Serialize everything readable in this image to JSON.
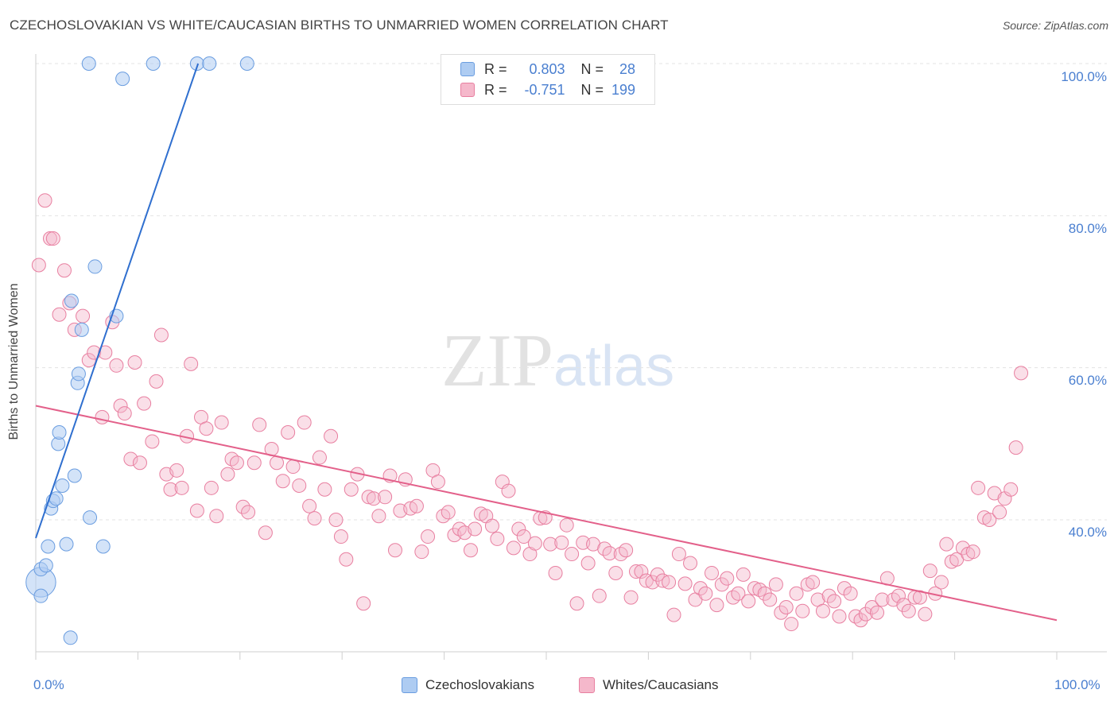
{
  "title": "CZECHOSLOVAKIAN VS WHITE/CAUCASIAN BIRTHS TO UNMARRIED WOMEN CORRELATION CHART",
  "source": "Source: ZipAtlas.com",
  "watermark": {
    "zip": "ZIP",
    "atlas": "atlas"
  },
  "stats": {
    "r_label": "R =",
    "n_label": "N =",
    "czech": {
      "r": "0.803",
      "n": "28"
    },
    "white": {
      "r": "-0.751",
      "n": "199"
    }
  },
  "legend": {
    "czech": "Czechoslovakians",
    "white": "Whites/Caucasians"
  },
  "colors": {
    "czech_fill": "#aeccf2",
    "czech_stroke": "#6a9de0",
    "czech_line": "#2f6fcf",
    "white_fill": "#f5b8cb",
    "white_stroke": "#e87fa0",
    "white_line": "#e3608a",
    "tick_text": "#4a7fd0"
  },
  "chart_data": {
    "type": "scatter",
    "title": "CZECHOSLOVAKIAN VS WHITE/CAUCASIAN BIRTHS TO UNMARRIED WOMEN CORRELATION CHART",
    "xlabel": "",
    "ylabel": "Births to Unmarried Women",
    "xlim": [
      0,
      100
    ],
    "ylim": [
      20,
      104
    ],
    "x_tick_labels": [
      "0.0%",
      "100.0%"
    ],
    "y_ticks": [
      40,
      60,
      80,
      100
    ],
    "y_tick_labels": [
      "40.0%",
      "60.0%",
      "80.0%",
      "100.0%"
    ],
    "series": [
      {
        "name": "Czechoslovakians",
        "r": 0.803,
        "n": 28,
        "trend": {
          "x": [
            0,
            15.9
          ],
          "y": [
            37.6,
            100
          ]
        },
        "points": [
          [
            0.5,
            31.8,
            2.2
          ],
          [
            0.5,
            30,
            1
          ],
          [
            0.5,
            33.5,
            1
          ],
          [
            1,
            34,
            1
          ],
          [
            1.2,
            36.5,
            1
          ],
          [
            1.5,
            41.5,
            1
          ],
          [
            1.7,
            42.5,
            1
          ],
          [
            2,
            42.8,
            1
          ],
          [
            2.2,
            50,
            1
          ],
          [
            2.3,
            51.5,
            1
          ],
          [
            2.6,
            44.5,
            1
          ],
          [
            3,
            36.8,
            1
          ],
          [
            3.5,
            68.8,
            1
          ],
          [
            3.4,
            24.5,
            1
          ],
          [
            3.8,
            45.8,
            1
          ],
          [
            4.1,
            58,
            1
          ],
          [
            4.2,
            59.2,
            1
          ],
          [
            4.5,
            65,
            1
          ],
          [
            5.2,
            100,
            1
          ],
          [
            5.3,
            40.3,
            1
          ],
          [
            5.8,
            73.3,
            1
          ],
          [
            6.6,
            36.5,
            1
          ],
          [
            7.9,
            66.8,
            1
          ],
          [
            8.5,
            98,
            1
          ],
          [
            11.5,
            100,
            1
          ],
          [
            15.8,
            100,
            1
          ],
          [
            17,
            100,
            1
          ],
          [
            20.7,
            100,
            1
          ]
        ]
      },
      {
        "name": "Whites/Caucasians",
        "r": -0.751,
        "n": 199,
        "trend": {
          "x": [
            0,
            100
          ],
          "y": [
            55,
            26.8
          ]
        },
        "points": [
          [
            0.3,
            73.5
          ],
          [
            0.9,
            82
          ],
          [
            1.4,
            77
          ],
          [
            1.7,
            77
          ],
          [
            2.3,
            67
          ],
          [
            2.8,
            72.8
          ],
          [
            3.3,
            68.5
          ],
          [
            3.8,
            65
          ],
          [
            4.6,
            66.8
          ],
          [
            5.2,
            61
          ],
          [
            5.7,
            62
          ],
          [
            6.5,
            53.5
          ],
          [
            6.8,
            62
          ],
          [
            7.5,
            66
          ],
          [
            7.9,
            60.3
          ],
          [
            8.3,
            55
          ],
          [
            8.7,
            54
          ],
          [
            9.3,
            48
          ],
          [
            9.7,
            60.7
          ],
          [
            10.2,
            47.5
          ],
          [
            10.6,
            55.3
          ],
          [
            11.4,
            50.3
          ],
          [
            11.8,
            58.2
          ],
          [
            12.3,
            64.3
          ],
          [
            12.8,
            46
          ],
          [
            13.2,
            44
          ],
          [
            13.8,
            46.5
          ],
          [
            14.3,
            44.2
          ],
          [
            14.8,
            51
          ],
          [
            15.2,
            60.5
          ],
          [
            15.8,
            41.2
          ],
          [
            16.2,
            53.5
          ],
          [
            16.7,
            52
          ],
          [
            17.2,
            44.2
          ],
          [
            17.7,
            40.5
          ],
          [
            18.2,
            52.8
          ],
          [
            18.8,
            46
          ],
          [
            19.2,
            48
          ],
          [
            19.7,
            47.5
          ],
          [
            20.3,
            41.7
          ],
          [
            20.8,
            41
          ],
          [
            21.4,
            47.5
          ],
          [
            21.9,
            52.5
          ],
          [
            22.5,
            38.3
          ],
          [
            23.1,
            49.3
          ],
          [
            23.6,
            47.5
          ],
          [
            24.2,
            45.1
          ],
          [
            24.7,
            51.5
          ],
          [
            25.2,
            47
          ],
          [
            25.8,
            44.5
          ],
          [
            26.3,
            52.8
          ],
          [
            26.8,
            41.8
          ],
          [
            27.3,
            40.2
          ],
          [
            27.8,
            48.2
          ],
          [
            28.3,
            44
          ],
          [
            28.9,
            51
          ],
          [
            29.4,
            40
          ],
          [
            29.9,
            37.8
          ],
          [
            30.4,
            34.8
          ],
          [
            30.9,
            44
          ],
          [
            31.5,
            46
          ],
          [
            32.1,
            29
          ],
          [
            32.6,
            43
          ],
          [
            33.1,
            42.8
          ],
          [
            33.6,
            40.5
          ],
          [
            34.2,
            43
          ],
          [
            34.7,
            45.8
          ],
          [
            35.2,
            36
          ],
          [
            35.7,
            41.2
          ],
          [
            36.2,
            45.3
          ],
          [
            36.7,
            41.5
          ],
          [
            37.3,
            41.8
          ],
          [
            37.8,
            35.8
          ],
          [
            38.4,
            37.8
          ],
          [
            38.9,
            46.5
          ],
          [
            39.4,
            45
          ],
          [
            39.9,
            40.5
          ],
          [
            40.4,
            41
          ],
          [
            41,
            38
          ],
          [
            41.5,
            38.8
          ],
          [
            42,
            38.3
          ],
          [
            42.6,
            36
          ],
          [
            43,
            38.8
          ],
          [
            43.6,
            40.8
          ],
          [
            44.1,
            40.5
          ],
          [
            44.7,
            39.2
          ],
          [
            45.2,
            37.5
          ],
          [
            45.7,
            45
          ],
          [
            46.3,
            43.8
          ],
          [
            46.8,
            36.3
          ],
          [
            47.3,
            38.8
          ],
          [
            47.8,
            37.8
          ],
          [
            48.4,
            35.5
          ],
          [
            48.9,
            36.9
          ],
          [
            49.4,
            40.2
          ],
          [
            49.9,
            40.3
          ],
          [
            50.4,
            36.8
          ],
          [
            50.9,
            33
          ],
          [
            51.5,
            37
          ],
          [
            52,
            39.3
          ],
          [
            52.5,
            35.5
          ],
          [
            53,
            29
          ],
          [
            53.6,
            37
          ],
          [
            54.1,
            34.3
          ],
          [
            54.6,
            36.8
          ],
          [
            55.2,
            30
          ],
          [
            55.7,
            36.2
          ],
          [
            56.2,
            35.6
          ],
          [
            56.8,
            33
          ],
          [
            57.3,
            35.5
          ],
          [
            57.8,
            36
          ],
          [
            58.3,
            29.8
          ],
          [
            58.8,
            33.2
          ],
          [
            59.3,
            33.2
          ],
          [
            59.8,
            32
          ],
          [
            60.4,
            31.8
          ],
          [
            60.9,
            32.8
          ],
          [
            61.4,
            32
          ],
          [
            62,
            31.8
          ],
          [
            62.5,
            27.5
          ],
          [
            63,
            35.5
          ],
          [
            63.6,
            31.6
          ],
          [
            64.1,
            34.3
          ],
          [
            64.6,
            29.5
          ],
          [
            65.1,
            31
          ],
          [
            65.6,
            30.3
          ],
          [
            66.2,
            33
          ],
          [
            66.7,
            28.8
          ],
          [
            67.2,
            31.5
          ],
          [
            67.7,
            32.3
          ],
          [
            68.3,
            29.8
          ],
          [
            68.8,
            30.3
          ],
          [
            69.3,
            32.8
          ],
          [
            69.8,
            29.3
          ],
          [
            70.4,
            31
          ],
          [
            70.9,
            30.8
          ],
          [
            71.4,
            30.3
          ],
          [
            71.9,
            29.5
          ],
          [
            72.5,
            31.5
          ],
          [
            73,
            27.8
          ],
          [
            73.5,
            28.5
          ],
          [
            74,
            26.3
          ],
          [
            74.5,
            30.3
          ],
          [
            75.1,
            28
          ],
          [
            75.6,
            31.5
          ],
          [
            76.1,
            31.8
          ],
          [
            76.6,
            29.5
          ],
          [
            77.1,
            28
          ],
          [
            77.7,
            30
          ],
          [
            78.2,
            29.3
          ],
          [
            78.7,
            27.3
          ],
          [
            79.2,
            31
          ],
          [
            79.8,
            30.3
          ],
          [
            80.3,
            27.3
          ],
          [
            80.8,
            26.8
          ],
          [
            81.3,
            27.6
          ],
          [
            81.9,
            28.5
          ],
          [
            82.4,
            27.8
          ],
          [
            82.9,
            29.5
          ],
          [
            83.4,
            32.3
          ],
          [
            84,
            29.5
          ],
          [
            84.5,
            30
          ],
          [
            85,
            28.8
          ],
          [
            85.5,
            28
          ],
          [
            86.1,
            29.8
          ],
          [
            86.6,
            29.8
          ],
          [
            87.1,
            27.6
          ],
          [
            87.6,
            33.3
          ],
          [
            88.1,
            30.3
          ],
          [
            88.7,
            31.8
          ],
          [
            89.2,
            36.8
          ],
          [
            89.7,
            34.5
          ],
          [
            90.2,
            34.8
          ],
          [
            90.8,
            36.3
          ],
          [
            91.3,
            35.5
          ],
          [
            91.8,
            35.8
          ],
          [
            92.3,
            44.2
          ],
          [
            92.9,
            40.3
          ],
          [
            93.4,
            40
          ],
          [
            93.9,
            43.5
          ],
          [
            94.4,
            41
          ],
          [
            94.9,
            42.8
          ],
          [
            95.5,
            44
          ],
          [
            96,
            49.5
          ],
          [
            96.5,
            59.3
          ]
        ]
      }
    ]
  }
}
